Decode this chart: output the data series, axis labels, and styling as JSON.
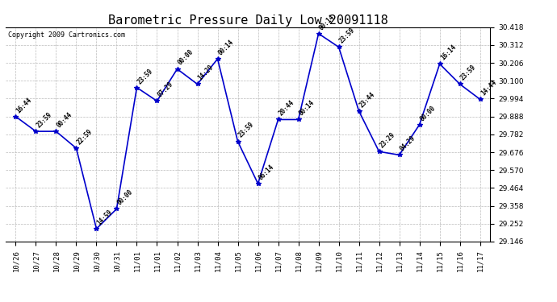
{
  "title": "Barometric Pressure Daily Low 20091118",
  "copyright": "Copyright 2009 Cartronics.com",
  "x_labels": [
    "10/26",
    "10/27",
    "10/28",
    "10/29",
    "10/30",
    "10/31",
    "11/01",
    "11/01",
    "11/02",
    "11/03",
    "11/04",
    "11/05",
    "11/06",
    "11/07",
    "11/08",
    "11/09",
    "11/10",
    "11/11",
    "11/12",
    "11/13",
    "11/14",
    "11/15",
    "11/16",
    "11/17"
  ],
  "y_values": [
    29.888,
    29.8,
    29.8,
    29.7,
    29.222,
    29.34,
    30.06,
    29.98,
    30.17,
    30.08,
    30.23,
    29.74,
    29.49,
    29.87,
    29.87,
    30.38,
    30.3,
    29.92,
    29.68,
    29.66,
    29.84,
    30.2,
    30.08,
    29.99
  ],
  "point_labels_clean": [
    "16:44",
    "23:59",
    "00:44",
    "22:59",
    "14:59",
    "00:00",
    "23:59",
    "07:29",
    "00:00",
    "14:29",
    "00:14",
    "23:59",
    "06:14",
    "20:44",
    "00:14",
    "00:14",
    "23:59",
    "23:44",
    "23:29",
    "04:29",
    "00:00",
    "16:14",
    "23:59",
    "14:44"
  ],
  "ylim_min": 29.146,
  "ylim_max": 30.418,
  "yticks": [
    29.146,
    29.252,
    29.358,
    29.464,
    29.57,
    29.676,
    29.782,
    29.888,
    29.994,
    30.1,
    30.206,
    30.312,
    30.418
  ],
  "line_color": "#0000CC",
  "marker_color": "#0000CC",
  "bg_color": "#FFFFFF",
  "grid_color": "#BBBBBB",
  "title_fontsize": 11,
  "copyright_fontsize": 6,
  "label_fontsize": 5.5,
  "tick_fontsize": 6.5
}
